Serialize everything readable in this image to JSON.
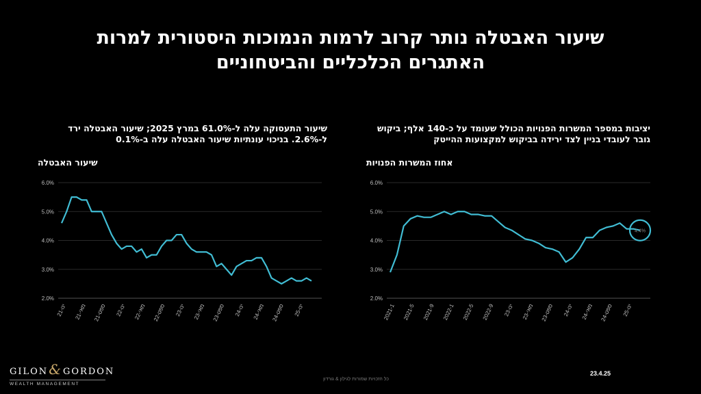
{
  "title_line1": "שיעור האבטלה נותר קרוב לרמות הנמוכות היסטורית למרות",
  "title_line2": "האתגרים הכלכליים והביטחוניים",
  "left": {
    "subtitle_line1": "שיעור התעסוקה  עלה ל-61.0% במרץ 2025; שיעור האבטלה ירד",
    "subtitle_line2": "ל-2.6%.  בניכוי עונתיות שיעור האבטלה עלה ב-0.1%",
    "chart_label": "שיעור האבטלה"
  },
  "right": {
    "subtitle_line1": "יציבות במספר המשרות הפנויות הכולל שעומד על כ-140 אלף; ביקוש",
    "subtitle_line2": "גובר לעובדי בניין לצד ירידה בביקוש למקצועות ההייטק",
    "chart_label": "אחוז המשרות הפנויות",
    "annotation": "4.4%"
  },
  "footer": {
    "logo_main_left": "GILON",
    "logo_amp": "&",
    "logo_main_right": "GORDON",
    "logo_sub": "WEALTH MANAGEMENT",
    "note": "כל הזכויות שמורות לגילון & גורדון",
    "date": "23.4.25"
  },
  "colors": {
    "series": "#41bdd4",
    "background": "#000000"
  },
  "chart_data": [
    {
      "type": "line",
      "ylabel": "שיעור האבטלה",
      "ylim": [
        2.0,
        6.0
      ],
      "yticks": [
        "6.0%",
        "5.0%",
        "4.0%",
        "3.0%",
        "2.0%"
      ],
      "xticks": [
        "ינו-21",
        "מאי-21",
        "ספט-21",
        "ינו-22",
        "מאי-22",
        "ספט-22",
        "ינו-23",
        "מאי-23",
        "ספט-23",
        "ינו-24",
        "מאי-24",
        "ספט-24",
        "ינו-25"
      ],
      "series": [
        {
          "values": [
            4.6,
            5.0,
            5.5,
            5.5,
            5.4,
            5.4,
            5.0,
            5.0,
            5.0,
            4.6,
            4.2,
            3.9,
            3.7,
            3.8,
            3.8,
            3.6,
            3.7,
            3.4,
            3.5,
            3.5,
            3.8,
            4.0,
            4.0,
            4.2,
            4.2,
            3.9,
            3.7,
            3.6,
            3.6,
            3.6,
            3.5,
            3.1,
            3.2,
            3.0,
            2.8,
            3.1,
            3.2,
            3.3,
            3.3,
            3.4,
            3.4,
            3.1,
            2.7,
            2.6,
            2.5,
            2.6,
            2.7,
            2.6,
            2.6,
            2.7,
            2.6
          ]
        }
      ]
    },
    {
      "type": "line",
      "ylabel": "אחוז המשרות הפנויות",
      "ylim": [
        2.0,
        6.0
      ],
      "yticks": [
        "6.0%",
        "5.0%",
        "4.0%",
        "3.0%",
        "2.0%"
      ],
      "xticks": [
        "2021-1",
        "2021-5",
        "2021-9",
        "2022-1",
        "2022-5",
        "2022-9",
        "ינו-23",
        "מאי-23",
        "ספט-23",
        "ינו-24",
        "מאי-24",
        "ספט-24",
        "ינו-25"
      ],
      "series": [
        {
          "values": [
            2.9,
            3.5,
            4.5,
            4.75,
            4.85,
            4.8,
            4.8,
            4.9,
            5.0,
            4.9,
            5.0,
            5.0,
            4.9,
            4.9,
            4.85,
            4.85,
            4.65,
            4.45,
            4.35,
            4.2,
            4.05,
            4.0,
            3.9,
            3.75,
            3.7,
            3.6,
            3.25,
            3.4,
            3.7,
            4.1,
            4.1,
            4.35,
            4.45,
            4.5,
            4.6,
            4.4,
            4.4,
            4.35
          ]
        }
      ],
      "annotation": "4.4%"
    }
  ]
}
